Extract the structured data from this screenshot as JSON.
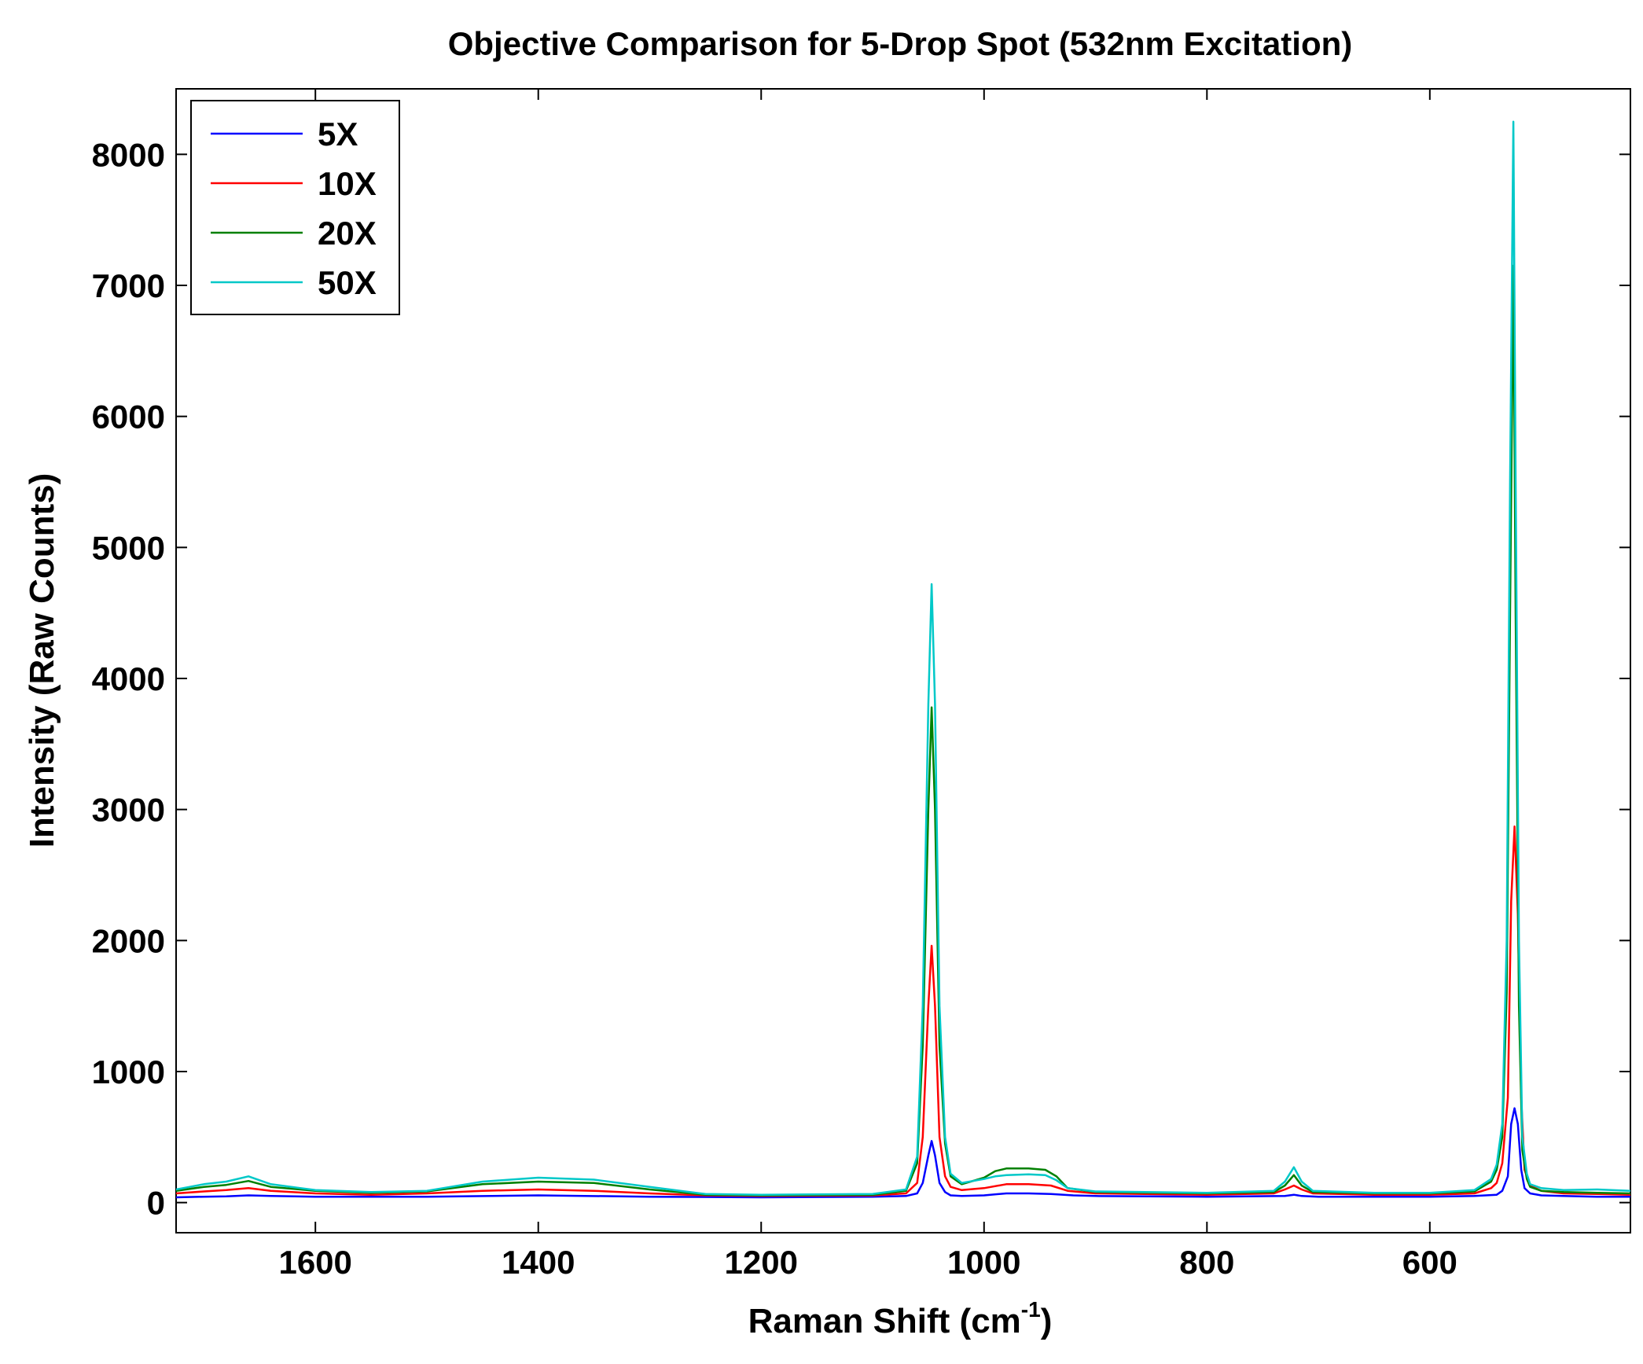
{
  "chart_data": {
    "type": "line",
    "title": "Objective Comparison for 5-Drop Spot (532nm Excitation)",
    "xlabel": "Raman Shift (cm",
    "xlabel_sup": "-1",
    "xlabel_close": ")",
    "ylabel": "Intensity (Raw Counts)",
    "xlim": [
      1725,
      420
    ],
    "ylim": [
      -230,
      8500
    ],
    "x_reversed": true,
    "grid": false,
    "legend_position": "top-left",
    "xticks": [
      1600,
      1400,
      1200,
      1000,
      800,
      600
    ],
    "yticks": [
      0,
      1000,
      2000,
      3000,
      4000,
      5000,
      6000,
      7000,
      8000
    ],
    "xtick_labels": [
      "1600",
      "1400",
      "1200",
      "1000",
      "800",
      "600"
    ],
    "ytick_labels": [
      "0",
      "1000",
      "2000",
      "3000",
      "4000",
      "5000",
      "6000",
      "7000",
      "8000"
    ],
    "series": [
      {
        "name": "5X",
        "color": "#0000ff",
        "x": [
          1725,
          1700,
          1680,
          1660,
          1640,
          1600,
          1500,
          1400,
          1300,
          1200,
          1100,
          1070,
          1060,
          1055,
          1050,
          1047,
          1044,
          1040,
          1035,
          1030,
          1020,
          1000,
          980,
          960,
          940,
          920,
          900,
          800,
          730,
          722,
          715,
          700,
          650,
          600,
          560,
          540,
          535,
          530,
          527,
          524,
          521,
          518,
          515,
          510,
          500,
          480,
          450,
          420
        ],
        "y": [
          40,
          45,
          48,
          55,
          50,
          45,
          45,
          55,
          45,
          40,
          45,
          50,
          70,
          150,
          360,
          470,
          360,
          150,
          80,
          55,
          50,
          55,
          70,
          70,
          65,
          55,
          50,
          45,
          50,
          60,
          50,
          45,
          45,
          45,
          50,
          60,
          90,
          200,
          600,
          720,
          600,
          250,
          110,
          70,
          55,
          50,
          45,
          45
        ]
      },
      {
        "name": "10X",
        "color": "#ff0000",
        "x": [
          1725,
          1700,
          1680,
          1660,
          1640,
          1600,
          1550,
          1500,
          1450,
          1400,
          1350,
          1300,
          1250,
          1200,
          1100,
          1070,
          1060,
          1055,
          1050,
          1047,
          1044,
          1040,
          1035,
          1030,
          1020,
          1000,
          980,
          960,
          940,
          925,
          900,
          800,
          740,
          730,
          722,
          715,
          705,
          650,
          600,
          560,
          545,
          540,
          535,
          530,
          527,
          524,
          521,
          518,
          515,
          510,
          500,
          480,
          450,
          420
        ],
        "y": [
          70,
          85,
          95,
          110,
          90,
          70,
          60,
          70,
          90,
          100,
          90,
          70,
          55,
          50,
          55,
          70,
          150,
          500,
          1500,
          1960,
          1500,
          500,
          200,
          120,
          95,
          110,
          140,
          140,
          130,
          90,
          70,
          60,
          70,
          100,
          130,
          100,
          70,
          60,
          60,
          70,
          110,
          150,
          300,
          800,
          2300,
          2870,
          2200,
          800,
          250,
          130,
          90,
          70,
          65,
          60
        ]
      },
      {
        "name": "20X",
        "color": "#008000",
        "x": [
          1725,
          1700,
          1680,
          1660,
          1640,
          1600,
          1550,
          1500,
          1450,
          1400,
          1350,
          1300,
          1250,
          1200,
          1100,
          1070,
          1060,
          1055,
          1050,
          1047,
          1044,
          1040,
          1035,
          1030,
          1020,
          1000,
          990,
          980,
          960,
          945,
          935,
          925,
          900,
          800,
          740,
          730,
          722,
          715,
          705,
          650,
          600,
          560,
          545,
          540,
          535,
          531,
          528,
          525,
          523,
          520,
          517,
          513,
          510,
          500,
          480,
          450,
          420
        ],
        "y": [
          90,
          120,
          135,
          165,
          120,
          90,
          75,
          85,
          140,
          160,
          150,
          100,
          60,
          55,
          60,
          90,
          300,
          1200,
          3000,
          3780,
          3000,
          1200,
          450,
          200,
          140,
          190,
          240,
          260,
          260,
          250,
          200,
          110,
          80,
          70,
          80,
          130,
          210,
          130,
          80,
          70,
          70,
          85,
          160,
          250,
          500,
          1600,
          4500,
          7150,
          4500,
          1500,
          400,
          180,
          120,
          90,
          80,
          75,
          70
        ]
      },
      {
        "name": "50X",
        "color": "#00c8c8",
        "x": [
          1725,
          1700,
          1680,
          1660,
          1640,
          1600,
          1550,
          1500,
          1450,
          1400,
          1350,
          1300,
          1250,
          1200,
          1100,
          1070,
          1060,
          1055,
          1050,
          1047,
          1044,
          1040,
          1035,
          1030,
          1020,
          1000,
          990,
          980,
          960,
          945,
          935,
          925,
          900,
          800,
          740,
          730,
          722,
          715,
          705,
          650,
          600,
          560,
          545,
          540,
          535,
          531,
          528,
          525,
          523,
          520,
          517,
          513,
          510,
          500,
          480,
          450,
          420
        ],
        "y": [
          100,
          140,
          160,
          200,
          140,
          95,
          80,
          90,
          160,
          190,
          175,
          120,
          65,
          60,
          65,
          100,
          350,
          1500,
          3800,
          4720,
          3800,
          1500,
          500,
          220,
          150,
          180,
          200,
          210,
          215,
          210,
          170,
          110,
          85,
          75,
          90,
          160,
          270,
          160,
          90,
          75,
          75,
          95,
          180,
          290,
          600,
          2000,
          5500,
          8250,
          5500,
          2000,
          500,
          220,
          140,
          110,
          95,
          100,
          90
        ]
      }
    ]
  }
}
